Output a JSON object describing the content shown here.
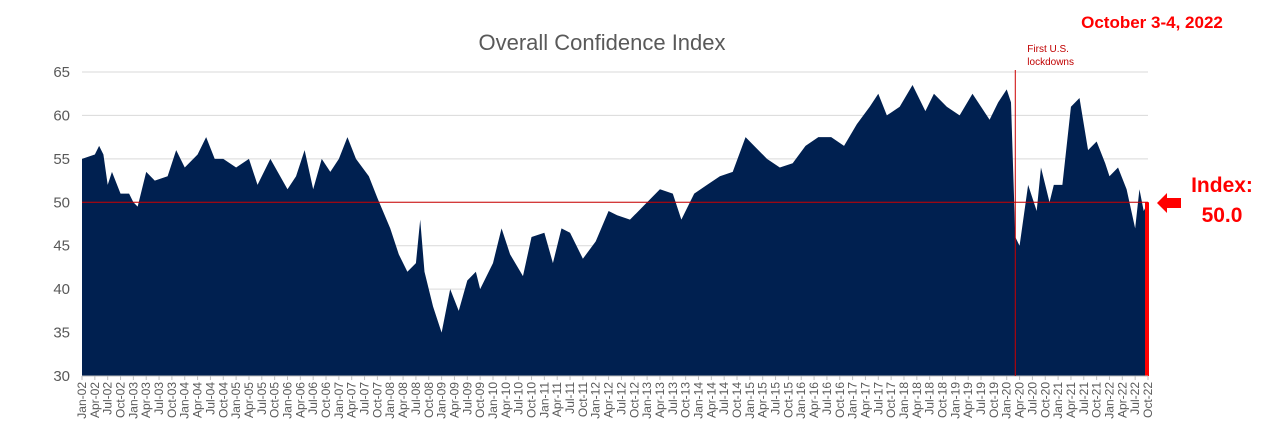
{
  "chart_data": {
    "type": "area",
    "title": "Overall Confidence Index",
    "xlabel": "",
    "ylabel": "",
    "ylim": [
      30,
      65
    ],
    "yticks": [
      30,
      35,
      40,
      45,
      50,
      55,
      60,
      65
    ],
    "grid": true,
    "legend": "none",
    "colors": {
      "area": "#002050",
      "reference": "#cc0000",
      "highlight": "#ff0000"
    },
    "x_tick_labels": [
      "Jan-02",
      "Apr-02",
      "Jul-02",
      "Oct-02",
      "Jan-03",
      "Apr-03",
      "Jul-03",
      "Oct-03",
      "Jan-04",
      "Apr-04",
      "Jul-04",
      "Oct-04",
      "Jan-05",
      "Apr-05",
      "Jul-05",
      "Oct-05",
      "Jan-06",
      "Apr-06",
      "Jul-06",
      "Oct-06",
      "Jan-07",
      "Apr-07",
      "Jul-07",
      "Oct-07",
      "Jan-08",
      "Apr-08",
      "Jul-08",
      "Oct-08",
      "Jan-09",
      "Apr-09",
      "Jul-09",
      "Oct-09",
      "Jan-10",
      "Apr-10",
      "Jul-10",
      "Oct-10",
      "Jan-11",
      "Apr-11",
      "Jul-11",
      "Oct-11",
      "Jan-12",
      "Apr-12",
      "Jul-12",
      "Oct-12",
      "Jan-13",
      "Apr-13",
      "Jul-13",
      "Oct-13",
      "Jan-14",
      "Apr-14",
      "Jul-14",
      "Oct-14",
      "Jan-15",
      "Apr-15",
      "Jul-15",
      "Oct-15",
      "Jan-16",
      "Apr-16",
      "Jul-16",
      "Oct-16",
      "Jan-17",
      "Apr-17",
      "Jul-17",
      "Oct-17",
      "Jan-18",
      "Apr-18",
      "Jul-18",
      "Oct-18",
      "Jan-19",
      "Apr-19",
      "Jul-19",
      "Oct-19",
      "Jan-20",
      "Apr-20",
      "Jul-20",
      "Oct-20",
      "Jan-21",
      "Apr-21",
      "Jul-21",
      "Oct-21",
      "Jan-22",
      "Apr-22",
      "Jul-22",
      "Oct-22"
    ],
    "points": [
      [
        "2002-01",
        55
      ],
      [
        "2002-04",
        55.5
      ],
      [
        "2002-05",
        56.5
      ],
      [
        "2002-06",
        55.5
      ],
      [
        "2002-07",
        52
      ],
      [
        "2002-08",
        53.5
      ],
      [
        "2002-10",
        51
      ],
      [
        "2002-12",
        51
      ],
      [
        "2003-01",
        50
      ],
      [
        "2003-02",
        49.5
      ],
      [
        "2003-04",
        53.5
      ],
      [
        "2003-06",
        52.5
      ],
      [
        "2003-09",
        53
      ],
      [
        "2003-11",
        56
      ],
      [
        "2004-01",
        54
      ],
      [
        "2004-04",
        55.5
      ],
      [
        "2004-06",
        57.5
      ],
      [
        "2004-08",
        55
      ],
      [
        "2004-10",
        55
      ],
      [
        "2005-01",
        54
      ],
      [
        "2005-04",
        55
      ],
      [
        "2005-06",
        52
      ],
      [
        "2005-09",
        55
      ],
      [
        "2006-01",
        51.5
      ],
      [
        "2006-03",
        53
      ],
      [
        "2006-05",
        56
      ],
      [
        "2006-07",
        51.5
      ],
      [
        "2006-09",
        55
      ],
      [
        "2006-11",
        53.5
      ],
      [
        "2007-01",
        55
      ],
      [
        "2007-03",
        57.5
      ],
      [
        "2007-05",
        55
      ],
      [
        "2007-08",
        53
      ],
      [
        "2007-10",
        50.5
      ],
      [
        "2008-01",
        47
      ],
      [
        "2008-03",
        44
      ],
      [
        "2008-05",
        42
      ],
      [
        "2008-07",
        43
      ],
      [
        "2008-08",
        48
      ],
      [
        "2008-09",
        42
      ],
      [
        "2008-11",
        38
      ],
      [
        "2009-01",
        35
      ],
      [
        "2009-03",
        40
      ],
      [
        "2009-05",
        37.5
      ],
      [
        "2009-07",
        41
      ],
      [
        "2009-09",
        42
      ],
      [
        "2009-10",
        40
      ],
      [
        "2010-01",
        43
      ],
      [
        "2010-03",
        47
      ],
      [
        "2010-05",
        44
      ],
      [
        "2010-08",
        41.5
      ],
      [
        "2010-10",
        46
      ],
      [
        "2011-01",
        46.5
      ],
      [
        "2011-03",
        43
      ],
      [
        "2011-05",
        47
      ],
      [
        "2011-07",
        46.5
      ],
      [
        "2011-10",
        43.5
      ],
      [
        "2012-01",
        45.5
      ],
      [
        "2012-04",
        49
      ],
      [
        "2012-06",
        48.5
      ],
      [
        "2012-09",
        48
      ],
      [
        "2012-12",
        49.5
      ],
      [
        "2013-04",
        51.5
      ],
      [
        "2013-07",
        51
      ],
      [
        "2013-09",
        48
      ],
      [
        "2013-12",
        51
      ],
      [
        "2014-03",
        52
      ],
      [
        "2014-06",
        53
      ],
      [
        "2014-09",
        53.5
      ],
      [
        "2014-12",
        57.5
      ],
      [
        "2015-02",
        56.5
      ],
      [
        "2015-05",
        55
      ],
      [
        "2015-08",
        54
      ],
      [
        "2015-11",
        54.5
      ],
      [
        "2016-02",
        56.5
      ],
      [
        "2016-05",
        57.5
      ],
      [
        "2016-08",
        57.5
      ],
      [
        "2016-11",
        56.5
      ],
      [
        "2017-02",
        59
      ],
      [
        "2017-05",
        61
      ],
      [
        "2017-07",
        62.5
      ],
      [
        "2017-09",
        60
      ],
      [
        "2017-12",
        61
      ],
      [
        "2018-03",
        63.5
      ],
      [
        "2018-06",
        60.5
      ],
      [
        "2018-08",
        62.5
      ],
      [
        "2018-11",
        61
      ],
      [
        "2019-02",
        60
      ],
      [
        "2019-05",
        62.5
      ],
      [
        "2019-07",
        61
      ],
      [
        "2019-09",
        59.5
      ],
      [
        "2019-11",
        61.5
      ],
      [
        "2020-01",
        63
      ],
      [
        "2020-02",
        61.5
      ],
      [
        "2020-03",
        46
      ],
      [
        "2020-04",
        45
      ],
      [
        "2020-06",
        52
      ],
      [
        "2020-08",
        49
      ],
      [
        "2020-09",
        54
      ],
      [
        "2020-11",
        50
      ],
      [
        "2020-12",
        52
      ],
      [
        "2021-02",
        52
      ],
      [
        "2021-04",
        61
      ],
      [
        "2021-06",
        62
      ],
      [
        "2021-08",
        56
      ],
      [
        "2021-10",
        57
      ],
      [
        "2021-12",
        54.5
      ],
      [
        "2022-01",
        53
      ],
      [
        "2022-03",
        54
      ],
      [
        "2022-05",
        51.5
      ],
      [
        "2022-07",
        47
      ],
      [
        "2022-08",
        51.5
      ],
      [
        "2022-09",
        49
      ],
      [
        "2022-10",
        50
      ]
    ],
    "reference_line": {
      "y": 50
    },
    "annotations": [
      {
        "text_lines": [
          "First U.S.",
          "lockdowns"
        ],
        "x": "2020-03"
      }
    ],
    "current": {
      "date_label": "October 3-4, 2022",
      "index_label_line1": "Index:",
      "index_label_line2": "50.0",
      "value": 50.0
    }
  }
}
